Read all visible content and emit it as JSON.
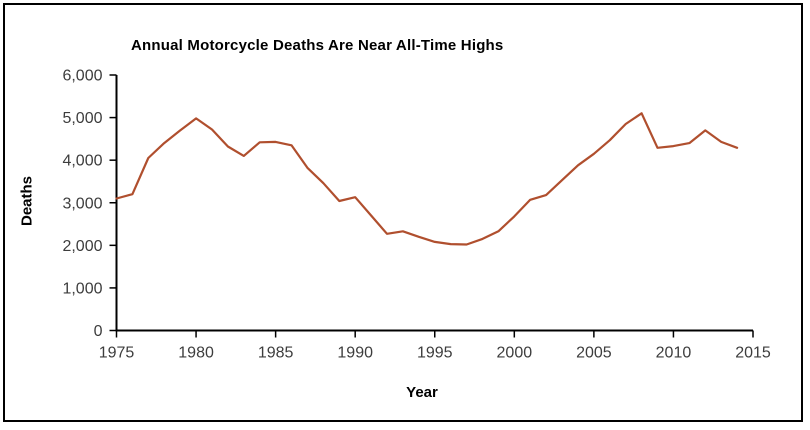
{
  "chart_data": {
    "type": "line",
    "title": "Annual Motorcycle Deaths Are Near All-Time Highs",
    "xlabel": "Year",
    "ylabel": "Deaths",
    "x": [
      1975,
      1976,
      1977,
      1978,
      1979,
      1980,
      1981,
      1982,
      1983,
      1984,
      1985,
      1986,
      1987,
      1988,
      1989,
      1990,
      1991,
      1992,
      1993,
      1994,
      1995,
      1996,
      1997,
      1998,
      1999,
      2000,
      2001,
      2002,
      2003,
      2004,
      2005,
      2006,
      2007,
      2008,
      2009,
      2010,
      2011,
      2012,
      2013,
      2014
    ],
    "values": [
      3100,
      3200,
      4050,
      4400,
      4700,
      4980,
      4720,
      4320,
      4100,
      4420,
      4430,
      4350,
      3820,
      3460,
      3040,
      3130,
      2700,
      2270,
      2330,
      2200,
      2080,
      2030,
      2020,
      2150,
      2330,
      2680,
      3070,
      3180,
      3530,
      3880,
      4150,
      4470,
      4850,
      5100,
      4290,
      4330,
      4400,
      4700,
      4430,
      4290
    ],
    "xlim": [
      1975,
      2015
    ],
    "ylim": [
      0,
      6000
    ],
    "x_tick_labels": [
      "1975",
      "1980",
      "1985",
      "1990",
      "1995",
      "2000",
      "2005",
      "2010",
      "2015"
    ],
    "x_tick_values": [
      1975,
      1980,
      1985,
      1990,
      1995,
      2000,
      2005,
      2010,
      2015
    ],
    "y_tick_labels": [
      "0",
      "1,000",
      "2,000",
      "3,000",
      "4,000",
      "5,000",
      "6,000"
    ],
    "y_tick_values": [
      0,
      1000,
      2000,
      3000,
      4000,
      5000,
      6000
    ],
    "grid": false,
    "legend": "none",
    "line_color": "#b04f2e",
    "axis_color": "#000000",
    "tick_label_color": "#3d3d3d",
    "title_color": "#000000",
    "background_color": "#ffffff"
  }
}
